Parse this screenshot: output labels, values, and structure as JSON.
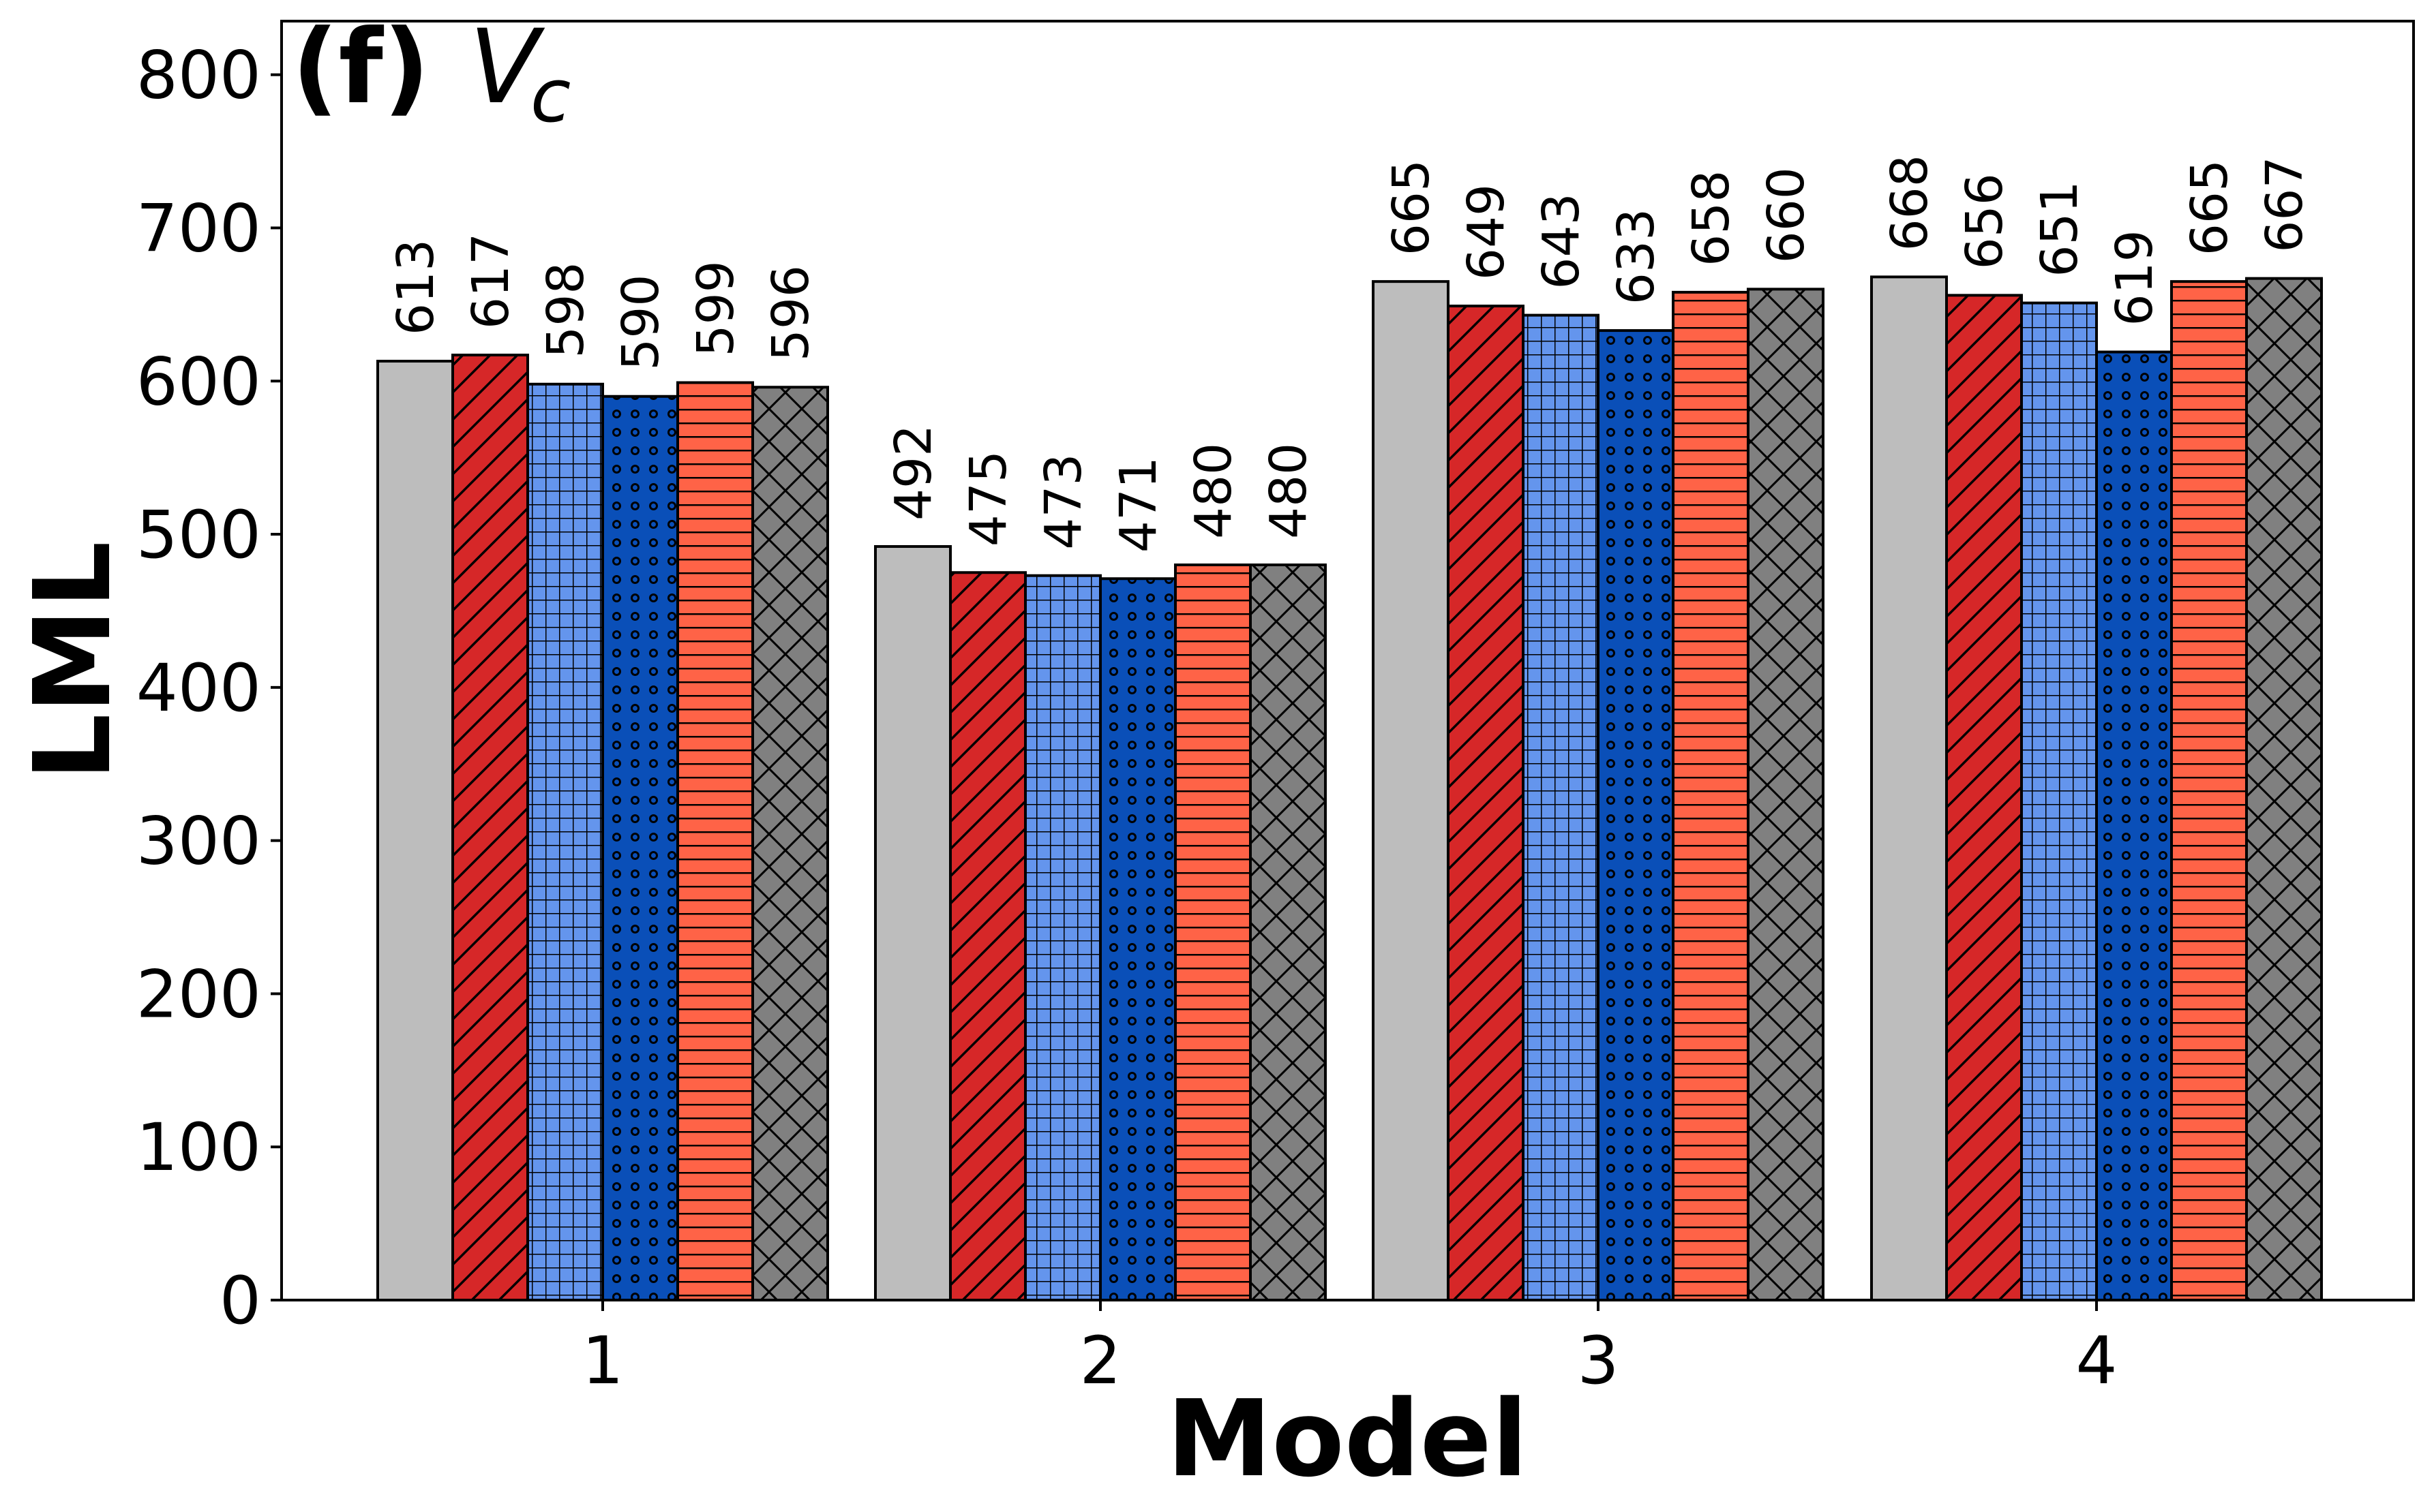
{
  "chart_data": {
    "type": "bar",
    "panel_label": "(f)",
    "panel_variable": "V",
    "panel_variable_subscript": "c",
    "xlabel": "Model",
    "ylabel": "LML",
    "categories": [
      "1",
      "2",
      "3",
      "4"
    ],
    "ylim": [
      0,
      835
    ],
    "yticks": [
      0,
      100,
      200,
      300,
      400,
      500,
      600,
      700,
      800
    ],
    "series": [
      {
        "name": "series-1",
        "color": "#bdbdbd",
        "hatch": "none",
        "values": [
          613,
          492,
          665,
          668
        ]
      },
      {
        "name": "series-2",
        "color": "#d62728",
        "hatch": "diagonal",
        "values": [
          617,
          475,
          649,
          656
        ]
      },
      {
        "name": "series-3",
        "color": "#6495ed",
        "hatch": "grid",
        "values": [
          598,
          473,
          643,
          651
        ]
      },
      {
        "name": "series-4",
        "color": "#0a4fb8",
        "hatch": "dots",
        "values": [
          590,
          471,
          633,
          619
        ]
      },
      {
        "name": "series-5",
        "color": "#ff6347",
        "hatch": "horizontal",
        "values": [
          599,
          480,
          658,
          665
        ]
      },
      {
        "name": "series-6",
        "color": "#808080",
        "hatch": "crosshatch",
        "values": [
          596,
          480,
          660,
          667
        ]
      }
    ]
  }
}
